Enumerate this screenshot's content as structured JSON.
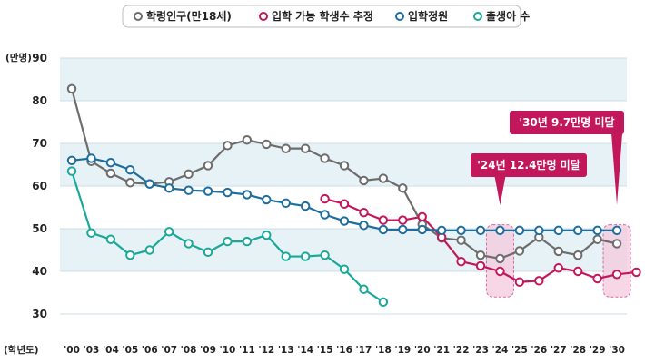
{
  "chart_data": {
    "type": "line",
    "legend": [
      {
        "name": "학령인구(만18세)",
        "color": "#6d6d6d"
      },
      {
        "name": "입학 가능 학생수 추정",
        "color": "#c2185b"
      },
      {
        "name": "입학정원",
        "color": "#1f6d9c"
      },
      {
        "name": "출생아 수",
        "color": "#1aa89a"
      }
    ],
    "ylabel": "(만명)",
    "xlabel": "(학년도)",
    "ylim": [
      30,
      90
    ],
    "yticks": [
      "90",
      "80",
      "70",
      "60",
      "50",
      "40",
      "30"
    ],
    "x_ticks": [
      "'00",
      "'03",
      "'04",
      "'05",
      "'06",
      "'07",
      "'08",
      "'09",
      "'10",
      "'11",
      "'12",
      "'13",
      "'14",
      "'15",
      "'16",
      "'17",
      "'18",
      "'19",
      "'20",
      "'21",
      "'22",
      "'23",
      "'24",
      "'25",
      "'26",
      "'27",
      "'28",
      "'29",
      "'30"
    ],
    "series": [
      {
        "name": "학령인구(만18세)",
        "color": "#6d6d6d",
        "start_index": 0,
        "values": [
          82.8,
          65.8,
          63.0,
          60.8,
          60.5,
          61.0,
          62.8,
          64.8,
          69.5,
          70.8,
          69.8,
          68.8,
          68.8,
          66.5,
          64.8,
          61.3,
          61.8,
          59.5,
          51.0,
          47.8,
          47.3,
          43.8,
          43.0,
          44.8,
          48.0,
          44.7,
          43.8,
          47.5,
          46.5
        ]
      },
      {
        "name": "입학 가능 학생수 추정",
        "color": "#c2185b",
        "start_index": 13,
        "values": [
          57.0,
          55.8,
          53.8,
          52.0,
          52.0,
          52.8,
          48.0,
          42.3,
          41.3,
          40.0,
          37.5,
          37.8,
          40.8,
          40.0,
          38.3,
          39.3,
          39.8
        ]
      },
      {
        "name": "입학정원",
        "color": "#1f6d9c",
        "start_index": 0,
        "values": [
          66.0,
          66.5,
          65.5,
          63.8,
          60.5,
          59.5,
          59.0,
          58.8,
          58.5,
          58.0,
          56.8,
          56.0,
          55.3,
          53.3,
          51.8,
          50.8,
          49.8,
          49.8,
          49.8,
          49.6,
          49.6,
          49.6,
          49.6,
          49.6,
          49.6,
          49.6,
          49.6,
          49.6,
          49.6
        ]
      },
      {
        "name": "출생아 수",
        "color": "#1aa89a",
        "start_index": 0,
        "values": [
          63.5,
          49.0,
          47.5,
          43.8,
          45.0,
          49.3,
          46.5,
          44.5,
          47.0,
          47.0,
          48.5,
          43.5,
          43.5,
          43.8,
          40.5,
          35.8,
          32.8
        ]
      }
    ],
    "annotations": [
      {
        "text": "'24년 12.4만명 미달",
        "x_index": 22
      },
      {
        "text": "'30년 9.7만명 미달",
        "x_index": 28
      }
    ]
  }
}
